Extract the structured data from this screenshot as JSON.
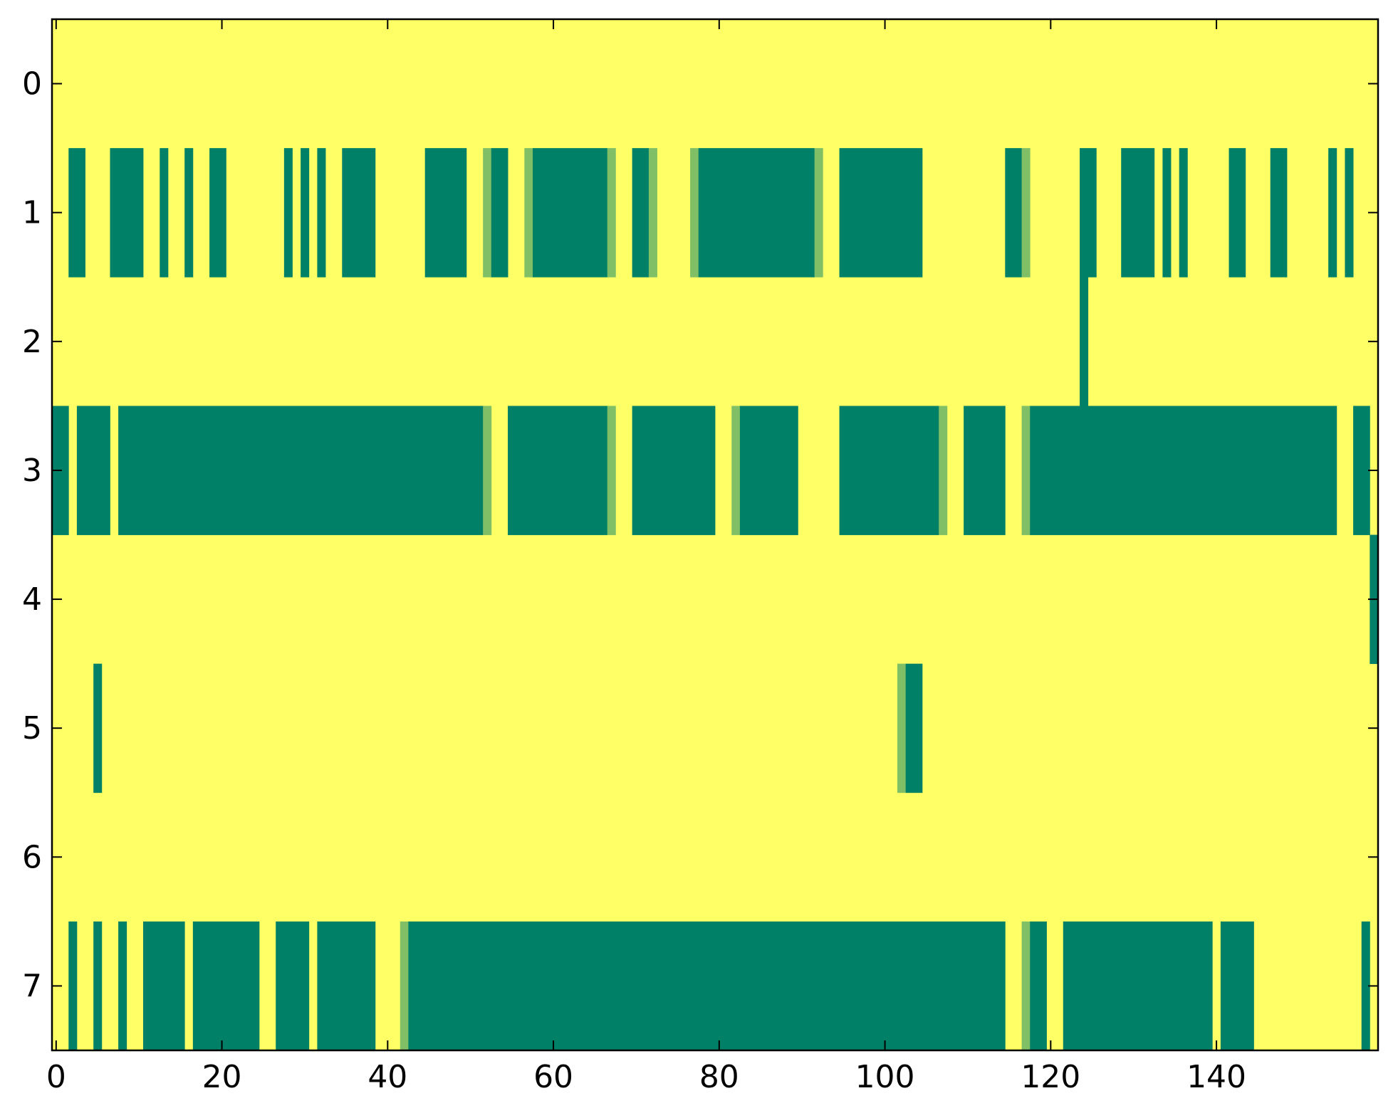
{
  "chart_data": {
    "type": "heatmap",
    "title": "",
    "xlabel": "",
    "ylabel": "",
    "n_cols": 160,
    "n_rows": 8,
    "xlim": [
      -0.5,
      159.5
    ],
    "ylim": [
      -0.5,
      7.5
    ],
    "y_inverted": true,
    "grid": false,
    "colorbar": false,
    "x_ticks": [
      0,
      20,
      40,
      60,
      80,
      100,
      120,
      140
    ],
    "y_ticks": [
      0,
      1,
      2,
      3,
      4,
      5,
      6,
      7
    ],
    "colors": {
      "background": "#ffff66",
      "high": "#008066",
      "mid": "#80bf66"
    },
    "runs_note_legend": "each run is [row, start_col, end_col_inclusive, level]; cells not listed are background",
    "runs": [
      [
        1,
        2,
        3,
        "high"
      ],
      [
        1,
        7,
        10,
        "high"
      ],
      [
        1,
        13,
        13,
        "high"
      ],
      [
        1,
        16,
        16,
        "high"
      ],
      [
        1,
        19,
        20,
        "high"
      ],
      [
        1,
        28,
        28,
        "high"
      ],
      [
        1,
        30,
        30,
        "high"
      ],
      [
        1,
        32,
        32,
        "high"
      ],
      [
        1,
        35,
        38,
        "high"
      ],
      [
        1,
        45,
        49,
        "high"
      ],
      [
        1,
        52,
        52,
        "mid"
      ],
      [
        1,
        53,
        54,
        "high"
      ],
      [
        1,
        57,
        57,
        "mid"
      ],
      [
        1,
        58,
        66,
        "high"
      ],
      [
        1,
        67,
        67,
        "mid"
      ],
      [
        1,
        70,
        71,
        "high"
      ],
      [
        1,
        72,
        72,
        "mid"
      ],
      [
        1,
        77,
        77,
        "mid"
      ],
      [
        1,
        78,
        91,
        "high"
      ],
      [
        1,
        92,
        92,
        "mid"
      ],
      [
        1,
        95,
        104,
        "high"
      ],
      [
        1,
        115,
        116,
        "high"
      ],
      [
        1,
        117,
        117,
        "mid"
      ],
      [
        1,
        124,
        125,
        "high"
      ],
      [
        1,
        129,
        132,
        "high"
      ],
      [
        1,
        134,
        134,
        "high"
      ],
      [
        1,
        136,
        136,
        "high"
      ],
      [
        1,
        142,
        143,
        "high"
      ],
      [
        1,
        147,
        148,
        "high"
      ],
      [
        1,
        154,
        154,
        "high"
      ],
      [
        1,
        156,
        156,
        "high"
      ],
      [
        2,
        124,
        124,
        "high"
      ],
      [
        3,
        0,
        1,
        "high"
      ],
      [
        3,
        3,
        6,
        "high"
      ],
      [
        3,
        8,
        51,
        "high"
      ],
      [
        3,
        52,
        52,
        "mid"
      ],
      [
        3,
        55,
        66,
        "high"
      ],
      [
        3,
        67,
        67,
        "mid"
      ],
      [
        3,
        70,
        79,
        "high"
      ],
      [
        3,
        82,
        82,
        "mid"
      ],
      [
        3,
        83,
        89,
        "high"
      ],
      [
        3,
        95,
        106,
        "high"
      ],
      [
        3,
        107,
        107,
        "mid"
      ],
      [
        3,
        110,
        114,
        "high"
      ],
      [
        3,
        117,
        117,
        "mid"
      ],
      [
        3,
        118,
        154,
        "high"
      ],
      [
        3,
        157,
        158,
        "high"
      ],
      [
        4,
        159,
        159,
        "high"
      ],
      [
        5,
        5,
        5,
        "high"
      ],
      [
        5,
        102,
        102,
        "mid"
      ],
      [
        5,
        103,
        104,
        "high"
      ],
      [
        7,
        2,
        2,
        "high"
      ],
      [
        7,
        5,
        5,
        "high"
      ],
      [
        7,
        8,
        8,
        "high"
      ],
      [
        7,
        11,
        15,
        "high"
      ],
      [
        7,
        17,
        24,
        "high"
      ],
      [
        7,
        27,
        30,
        "high"
      ],
      [
        7,
        32,
        38,
        "high"
      ],
      [
        7,
        42,
        42,
        "mid"
      ],
      [
        7,
        43,
        114,
        "high"
      ],
      [
        7,
        117,
        117,
        "mid"
      ],
      [
        7,
        118,
        119,
        "high"
      ],
      [
        7,
        122,
        139,
        "high"
      ],
      [
        7,
        141,
        144,
        "high"
      ],
      [
        7,
        158,
        158,
        "high"
      ]
    ]
  }
}
